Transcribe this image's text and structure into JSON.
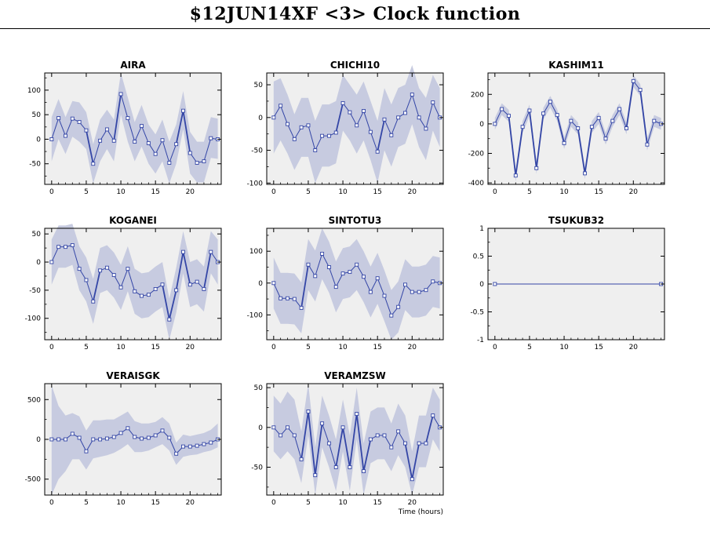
{
  "title": "$12JUN14XF <3>  Clock function",
  "colors": {
    "line": "#3446a6",
    "band": "#c7cbe0",
    "plot_bg": "#efefef",
    "marker_fill": "#ffffff"
  },
  "chart_data": [
    {
      "type": "line",
      "title": "AIRA",
      "xlabel": "",
      "xlim": [
        -1,
        24.5
      ],
      "ylim": [
        -92,
        135
      ],
      "xticks": [
        0,
        5,
        10,
        15,
        20
      ],
      "yticks": [
        100,
        50,
        0,
        -50
      ],
      "x": [
        0,
        1,
        2,
        3,
        4,
        5,
        6,
        7,
        8,
        9,
        10,
        11,
        12,
        13,
        14,
        15,
        16,
        17,
        18,
        19,
        20,
        21,
        22,
        23,
        24
      ],
      "y": [
        0,
        43,
        7,
        42,
        35,
        18,
        -50,
        -3,
        20,
        -3,
        92,
        43,
        -5,
        27,
        -8,
        -30,
        -2,
        -48,
        -10,
        58,
        -28,
        -48,
        -45,
        2,
        0
      ],
      "band": [
        [
          -45,
          45
        ],
        [
          0,
          82
        ],
        [
          -30,
          45
        ],
        [
          5,
          78
        ],
        [
          -5,
          75
        ],
        [
          -20,
          55
        ],
        [
          -90,
          -10
        ],
        [
          -45,
          40
        ],
        [
          -20,
          60
        ],
        [
          -45,
          40
        ],
        [
          50,
          135
        ],
        [
          -5,
          85
        ],
        [
          -45,
          35
        ],
        [
          -15,
          70
        ],
        [
          -50,
          30
        ],
        [
          -70,
          10
        ],
        [
          -45,
          40
        ],
        [
          -90,
          -5
        ],
        [
          -50,
          30
        ],
        [
          20,
          98
        ],
        [
          -70,
          15
        ],
        [
          -88,
          -5
        ],
        [
          -88,
          -5
        ],
        [
          -38,
          45
        ],
        [
          -40,
          42
        ]
      ]
    },
    {
      "type": "line",
      "title": "CHICHI10",
      "xlabel": "",
      "xlim": [
        -1,
        24.5
      ],
      "ylim": [
        -102,
        68
      ],
      "xticks": [
        0,
        5,
        10,
        15,
        20
      ],
      "yticks": [
        50,
        0,
        -50,
        -100
      ],
      "x": [
        0,
        1,
        2,
        3,
        4,
        5,
        6,
        7,
        8,
        9,
        10,
        11,
        12,
        13,
        14,
        15,
        16,
        17,
        18,
        19,
        20,
        21,
        22,
        23,
        24
      ],
      "y": [
        0,
        18,
        -10,
        -33,
        -15,
        -12,
        -50,
        -28,
        -28,
        -23,
        22,
        8,
        -12,
        10,
        -22,
        -52,
        -3,
        -27,
        0,
        7,
        35,
        0,
        -17,
        23,
        0
      ],
      "band": [
        [
          -55,
          55
        ],
        [
          -35,
          60
        ],
        [
          -55,
          35
        ],
        [
          -80,
          5
        ],
        [
          -60,
          30
        ],
        [
          -60,
          30
        ],
        [
          -100,
          -5
        ],
        [
          -75,
          20
        ],
        [
          -75,
          20
        ],
        [
          -70,
          25
        ],
        [
          -20,
          65
        ],
        [
          -35,
          50
        ],
        [
          -55,
          35
        ],
        [
          -35,
          55
        ],
        [
          -65,
          25
        ],
        [
          -100,
          -5
        ],
        [
          -50,
          45
        ],
        [
          -75,
          20
        ],
        [
          -45,
          45
        ],
        [
          -40,
          50
        ],
        [
          -10,
          80
        ],
        [
          -45,
          45
        ],
        [
          -65,
          30
        ],
        [
          -20,
          65
        ],
        [
          -45,
          45
        ]
      ]
    },
    {
      "type": "line",
      "title": "KASHIM11",
      "xlabel": "",
      "xlim": [
        -1,
        24.5
      ],
      "ylim": [
        -410,
        345
      ],
      "xticks": [
        0,
        5,
        10,
        15,
        20
      ],
      "yticks": [
        200,
        0,
        -200,
        -400
      ],
      "x": [
        0,
        1,
        2,
        3,
        4,
        5,
        6,
        7,
        8,
        9,
        10,
        11,
        12,
        13,
        14,
        15,
        16,
        17,
        18,
        19,
        20,
        21,
        22,
        23,
        24
      ],
      "y": [
        0,
        100,
        55,
        -350,
        -20,
        90,
        -300,
        70,
        150,
        60,
        -130,
        20,
        -30,
        -335,
        -20,
        40,
        -100,
        20,
        100,
        -30,
        290,
        230,
        -140,
        20,
        0
      ],
      "band": [
        [
          -40,
          40
        ],
        [
          60,
          140
        ],
        [
          15,
          95
        ],
        [
          -390,
          -310
        ],
        [
          -60,
          20
        ],
        [
          50,
          130
        ],
        [
          -340,
          -260
        ],
        [
          30,
          110
        ],
        [
          110,
          190
        ],
        [
          20,
          100
        ],
        [
          -170,
          -90
        ],
        [
          -20,
          60
        ],
        [
          -70,
          10
        ],
        [
          -375,
          -295
        ],
        [
          -60,
          20
        ],
        [
          0,
          80
        ],
        [
          -140,
          -60
        ],
        [
          -20,
          60
        ],
        [
          60,
          140
        ],
        [
          -70,
          10
        ],
        [
          250,
          330
        ],
        [
          190,
          270
        ],
        [
          -180,
          -100
        ],
        [
          -20,
          60
        ],
        [
          -40,
          40
        ]
      ]
    },
    {
      "type": "line",
      "title": "KOGANEI",
      "xlabel": "",
      "xlim": [
        -1,
        24.5
      ],
      "ylim": [
        -138,
        60
      ],
      "xticks": [
        0,
        5,
        10,
        15,
        20
      ],
      "yticks": [
        50,
        0,
        -50,
        -100
      ],
      "x": [
        0,
        1,
        2,
        3,
        4,
        5,
        6,
        7,
        8,
        9,
        10,
        11,
        12,
        13,
        14,
        15,
        16,
        17,
        18,
        19,
        20,
        21,
        22,
        23,
        24
      ],
      "y": [
        0,
        27,
        27,
        30,
        -12,
        -32,
        -70,
        -15,
        -10,
        -23,
        -45,
        -12,
        -52,
        -60,
        -58,
        -48,
        -40,
        -102,
        -50,
        18,
        -40,
        -35,
        -48,
        18,
        0
      ],
      "band": [
        [
          -40,
          40
        ],
        [
          -10,
          65
        ],
        [
          -10,
          65
        ],
        [
          -5,
          68
        ],
        [
          -50,
          28
        ],
        [
          -70,
          8
        ],
        [
          -110,
          -30
        ],
        [
          -55,
          25
        ],
        [
          -50,
          30
        ],
        [
          -63,
          17
        ],
        [
          -85,
          -5
        ],
        [
          -52,
          28
        ],
        [
          -92,
          -12
        ],
        [
          -100,
          -20
        ],
        [
          -98,
          -18
        ],
        [
          -88,
          -8
        ],
        [
          -80,
          0
        ],
        [
          -138,
          -65
        ],
        [
          -90,
          -10
        ],
        [
          -20,
          55
        ],
        [
          -80,
          0
        ],
        [
          -75,
          5
        ],
        [
          -88,
          -8
        ],
        [
          -20,
          55
        ],
        [
          -40,
          40
        ]
      ]
    },
    {
      "type": "line",
      "title": "SINTOTU3",
      "xlabel": "",
      "xlim": [
        -1,
        24.5
      ],
      "ylim": [
        -178,
        172
      ],
      "xticks": [
        0,
        5,
        10,
        15,
        20
      ],
      "yticks": [
        100,
        0,
        -100
      ],
      "x": [
        0,
        1,
        2,
        3,
        4,
        5,
        6,
        7,
        8,
        9,
        10,
        11,
        12,
        13,
        14,
        15,
        16,
        17,
        18,
        19,
        20,
        21,
        22,
        23,
        24
      ],
      "y": [
        0,
        -48,
        -48,
        -50,
        -78,
        58,
        22,
        92,
        50,
        -12,
        30,
        35,
        58,
        20,
        -28,
        15,
        -40,
        -102,
        -75,
        -5,
        -28,
        -28,
        -22,
        5,
        0
      ],
      "band": [
        [
          -80,
          80
        ],
        [
          -128,
          32
        ],
        [
          -128,
          32
        ],
        [
          -130,
          30
        ],
        [
          -158,
          2
        ],
        [
          -22,
          138
        ],
        [
          -58,
          102
        ],
        [
          12,
          172
        ],
        [
          -30,
          130
        ],
        [
          -92,
          68
        ],
        [
          -50,
          110
        ],
        [
          -45,
          115
        ],
        [
          -22,
          138
        ],
        [
          -60,
          100
        ],
        [
          -108,
          52
        ],
        [
          -65,
          95
        ],
        [
          -120,
          40
        ],
        [
          -178,
          -22
        ],
        [
          -155,
          5
        ],
        [
          -85,
          75
        ],
        [
          -108,
          52
        ],
        [
          -108,
          52
        ],
        [
          -102,
          58
        ],
        [
          -75,
          85
        ],
        [
          -80,
          80
        ]
      ]
    },
    {
      "type": "line",
      "title": "TSUKUB32",
      "xlabel": "",
      "xlim": [
        -1,
        24.5
      ],
      "ylim": [
        -1,
        1
      ],
      "xticks": [
        0,
        5,
        10,
        15,
        20
      ],
      "yticks": [
        1,
        0.5,
        0,
        -0.5,
        -1
      ],
      "x": [
        0,
        24
      ],
      "y": [
        0,
        0
      ],
      "band": []
    },
    {
      "type": "line",
      "title": "VERAISGK",
      "xlabel": "",
      "xlim": [
        -1,
        24.5
      ],
      "ylim": [
        -700,
        700
      ],
      "xticks": [
        0,
        5,
        10,
        15,
        20
      ],
      "yticks": [
        500,
        0,
        -500
      ],
      "x": [
        0,
        1,
        2,
        3,
        4,
        5,
        6,
        7,
        8,
        9,
        10,
        11,
        12,
        13,
        14,
        15,
        16,
        17,
        18,
        19,
        20,
        21,
        22,
        23,
        24
      ],
      "y": [
        0,
        0,
        0,
        70,
        20,
        -150,
        0,
        0,
        10,
        30,
        80,
        140,
        30,
        10,
        20,
        50,
        110,
        20,
        -180,
        -90,
        -90,
        -80,
        -60,
        -40,
        0
      ],
      "band": [
        [
          -700,
          680
        ],
        [
          -500,
          420
        ],
        [
          -400,
          300
        ],
        [
          -250,
          330
        ],
        [
          -250,
          290
        ],
        [
          -380,
          110
        ],
        [
          -240,
          240
        ],
        [
          -220,
          240
        ],
        [
          -200,
          250
        ],
        [
          -170,
          250
        ],
        [
          -120,
          300
        ],
        [
          -60,
          350
        ],
        [
          -160,
          230
        ],
        [
          -160,
          200
        ],
        [
          -140,
          200
        ],
        [
          -100,
          220
        ],
        [
          -60,
          280
        ],
        [
          -140,
          200
        ],
        [
          -320,
          -40
        ],
        [
          -220,
          60
        ],
        [
          -200,
          40
        ],
        [
          -190,
          60
        ],
        [
          -160,
          80
        ],
        [
          -140,
          120
        ],
        [
          -100,
          200
        ]
      ]
    },
    {
      "type": "line",
      "title": "VERAMZSW",
      "xlabel": "Time (hours)",
      "xlim": [
        -1,
        24.5
      ],
      "ylim": [
        -85,
        55
      ],
      "xticks": [
        0,
        5,
        10,
        15,
        20
      ],
      "yticks": [
        50,
        0,
        -50
      ],
      "x": [
        0,
        1,
        2,
        3,
        4,
        5,
        6,
        7,
        8,
        9,
        10,
        11,
        12,
        13,
        14,
        15,
        16,
        17,
        18,
        19,
        20,
        21,
        22,
        23,
        24
      ],
      "y": [
        0,
        -10,
        0,
        -10,
        -40,
        20,
        -60,
        5,
        -20,
        -50,
        0,
        -50,
        17,
        -55,
        -15,
        -10,
        -10,
        -25,
        -5,
        -20,
        -65,
        -20,
        -20,
        15,
        0
      ],
      "band": [
        [
          -30,
          40
        ],
        [
          -40,
          30
        ],
        [
          -30,
          45
        ],
        [
          -40,
          35
        ],
        [
          -70,
          -5
        ],
        [
          -10,
          55
        ],
        [
          -85,
          -25
        ],
        [
          -25,
          40
        ],
        [
          -50,
          15
        ],
        [
          -80,
          -15
        ],
        [
          -30,
          35
        ],
        [
          -80,
          -10
        ],
        [
          -15,
          50
        ],
        [
          -85,
          -20
        ],
        [
          -45,
          20
        ],
        [
          -40,
          25
        ],
        [
          -40,
          25
        ],
        [
          -55,
          5
        ],
        [
          -35,
          30
        ],
        [
          -50,
          15
        ],
        [
          -85,
          -30
        ],
        [
          -50,
          15
        ],
        [
          -50,
          15
        ],
        [
          -15,
          50
        ],
        [
          -30,
          35
        ]
      ]
    }
  ]
}
